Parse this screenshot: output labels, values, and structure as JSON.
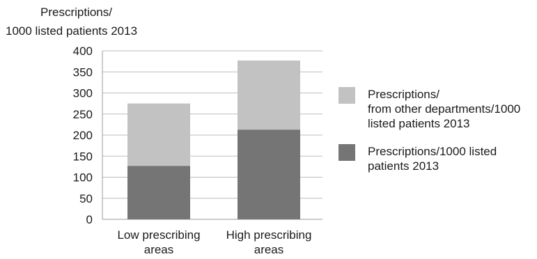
{
  "chart_data": {
    "type": "bar",
    "stacked": true,
    "ylabel_lines": [
      "Prescriptions/",
      "1000 listed patients 2013"
    ],
    "xlabel": "",
    "categories_lines": [
      [
        "Low prescribing",
        "areas"
      ],
      [
        "High prescribing",
        "areas"
      ]
    ],
    "ylim": [
      0,
      400
    ],
    "yticks": [
      "0",
      "50",
      "100",
      "150",
      "200",
      "250",
      "300",
      "350",
      "400"
    ],
    "grid": true,
    "legend_position": "right",
    "series": [
      {
        "name_lines": [
          "Prescriptions/1000 listed",
          "patients 2013"
        ],
        "color": "#757575",
        "values": [
          127,
          213
        ]
      },
      {
        "name_lines": [
          "Prescriptions/",
          "from other departments/1000",
          "listed patients 2013"
        ],
        "color": "#c2c2c2",
        "values": [
          148,
          164
        ]
      }
    ]
  }
}
